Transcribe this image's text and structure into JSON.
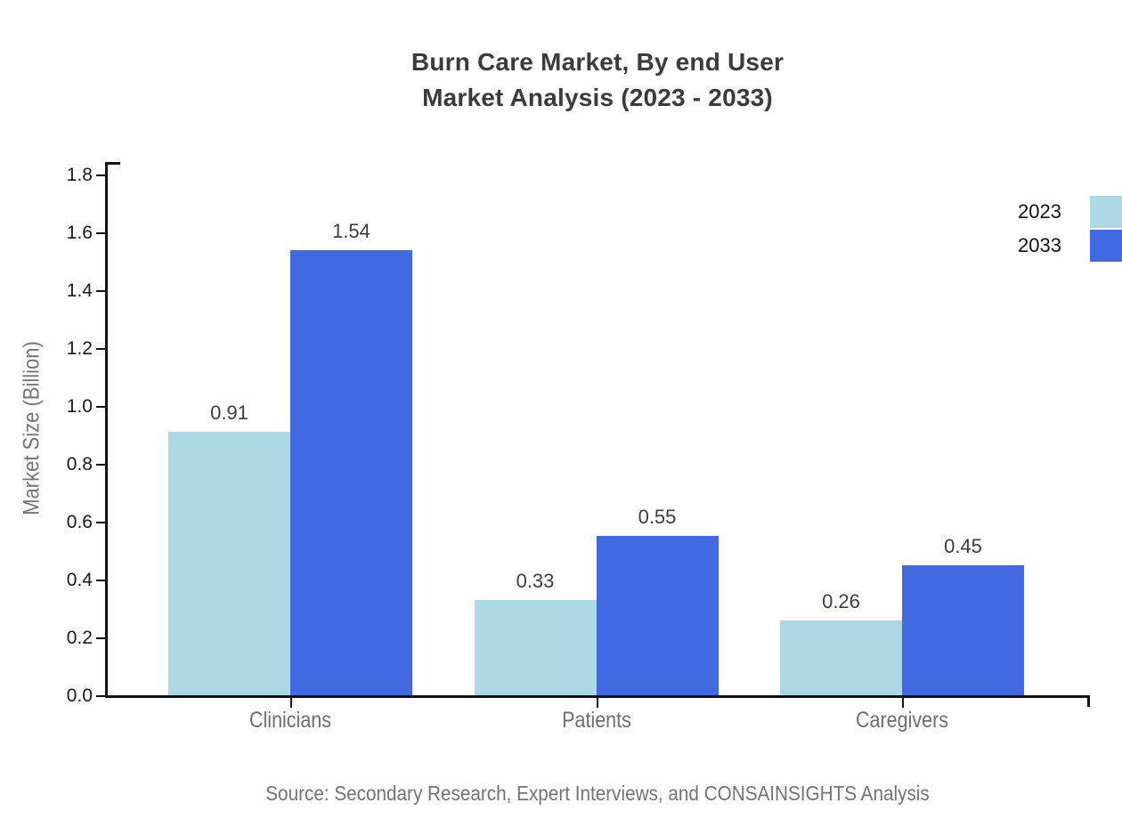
{
  "title": {
    "line1": "Burn Care Market, By end User",
    "line2": "Market Analysis (2023 - 2033)"
  },
  "source": "Source: Secondary Research, Expert Interviews, and CONSAINSIGHTS Analysis",
  "legend": [
    {
      "label": "2023",
      "color": "#ADD8E6"
    },
    {
      "label": "2033",
      "color": "#4169E1"
    }
  ],
  "colors": {
    "series_2023": "#ADD8E6",
    "series_2033": "#4169E1",
    "axis": "#111111",
    "tick_label": "#1a1a1a",
    "muted_text": "#757575",
    "title_text": "#3b3b3b",
    "value_label": "#3d3d3d"
  },
  "chart_data": {
    "type": "bar",
    "categories": [
      "Clinicians",
      "Patients",
      "Caregivers"
    ],
    "series": [
      {
        "name": "2023",
        "color": "#ADD8E6",
        "values": [
          0.91,
          0.33,
          0.26
        ]
      },
      {
        "name": "2033",
        "color": "#4169E1",
        "values": [
          1.54,
          0.55,
          0.45
        ]
      }
    ],
    "title": "Burn Care Market, By end User Market Analysis (2023 - 2033)",
    "xlabel": "",
    "ylabel": "Market Size (Billion)",
    "ylim": [
      0,
      1.8
    ],
    "ytick_step": 0.2,
    "grid": false,
    "legend_position": "upper right",
    "value_labels": true
  }
}
